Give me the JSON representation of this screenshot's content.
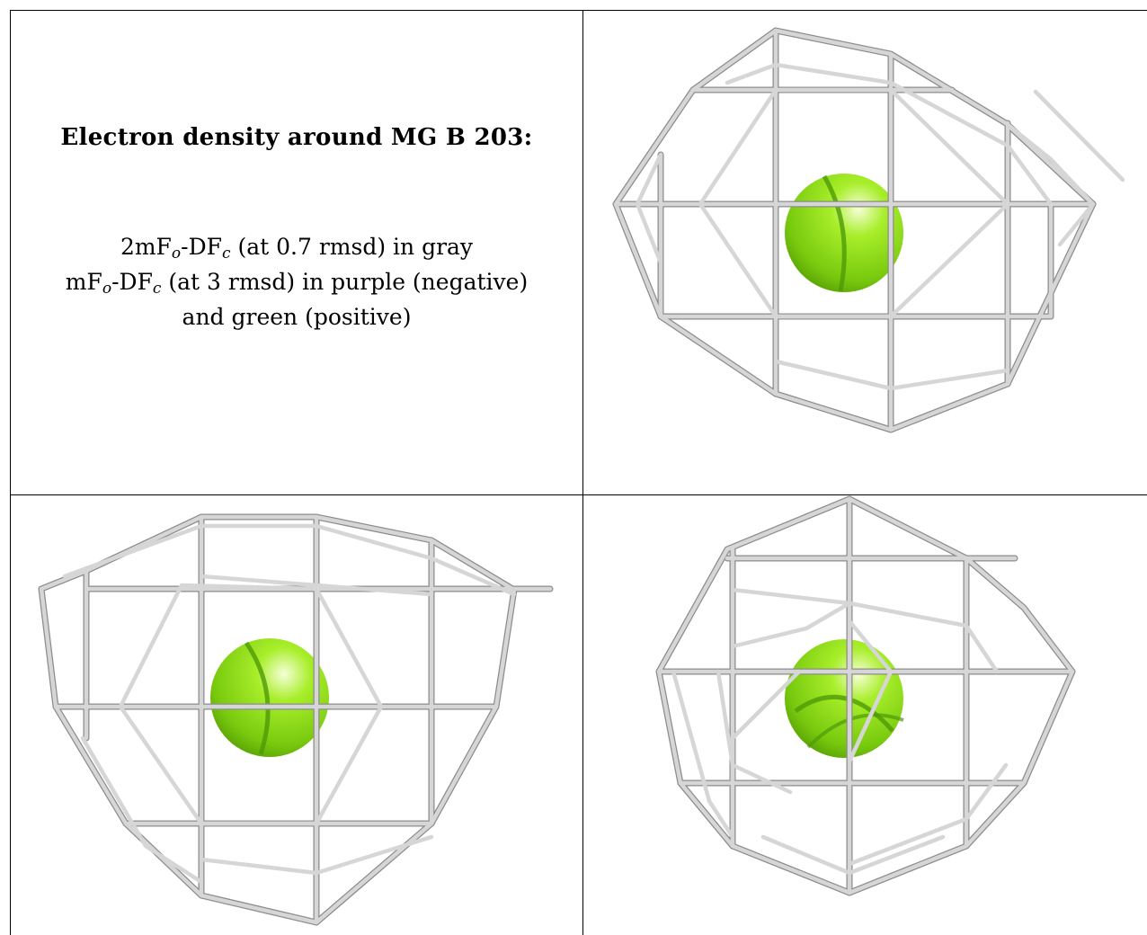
{
  "caption": {
    "title": "Electron density around MG B 203:",
    "line1_main_a": "2mF",
    "line1_sub_a": "o",
    "line1_main_b": "-DF",
    "line1_sub_b": "c",
    "line1_rest": " (at 0.7 rmsd) in gray",
    "line2_main_a": "mF",
    "line2_sub_a": "o",
    "line2_main_b": "-DF",
    "line2_sub_b": "c",
    "line2_rest": " (at 3 rmsd) in purple (negative)",
    "line3": "and green (positive)"
  },
  "colors": {
    "mesh": "#c8c8c8",
    "mesh_dark": "#7a7a7a",
    "atom": "#8ee61c",
    "atom_dark": "#4f9a08"
  },
  "views": [
    "top-right",
    "bottom-left",
    "bottom-right"
  ]
}
